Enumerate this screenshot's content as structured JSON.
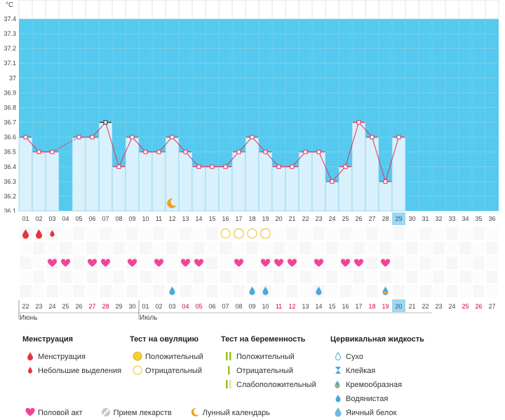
{
  "unit": "°C",
  "colors": {
    "sky": "#56c9ee",
    "bar": "#d8f1fc",
    "bar_edge": "#7cc9e8",
    "line": "#e0335e",
    "heart": "#f0449b",
    "drop_red": "#e8333c",
    "drop_blue": "#4aa8dd",
    "circle": "#f0c020",
    "moon": "#f0a020",
    "today": "#9dd7f0"
  },
  "chart_data": {
    "type": "line",
    "ylim": [
      36.1,
      37.4
    ],
    "yticks": [
      "36.1",
      "36.2",
      "36.3",
      "36.4",
      "36.5",
      "36.6",
      "36.7",
      "36.8",
      "36.9",
      "37",
      "37.1",
      "37.2",
      "37.3",
      "37.4"
    ],
    "cycle_days": [
      "01",
      "02",
      "03",
      "04",
      "05",
      "06",
      "07",
      "08",
      "09",
      "10",
      "11",
      "12",
      "13",
      "14",
      "15",
      "16",
      "17",
      "18",
      "19",
      "20",
      "21",
      "22",
      "23",
      "24",
      "25",
      "26",
      "27",
      "28",
      "29",
      "30",
      "31",
      "32",
      "33",
      "34",
      "35",
      "36"
    ],
    "temperatures": [
      36.6,
      36.5,
      36.5,
      null,
      36.6,
      36.6,
      36.7,
      36.4,
      36.6,
      36.5,
      36.5,
      36.6,
      36.5,
      36.4,
      36.4,
      36.4,
      36.5,
      36.6,
      36.5,
      36.4,
      36.4,
      36.5,
      36.5,
      36.3,
      36.4,
      36.7,
      36.6,
      36.3,
      36.6
    ],
    "today_index": 28,
    "dates": [
      "22",
      "23",
      "24",
      "25",
      "26",
      "27",
      "28",
      "29",
      "30",
      "01",
      "02",
      "03",
      "04",
      "05",
      "06",
      "07",
      "08",
      "09",
      "10",
      "11",
      "12",
      "13",
      "14",
      "15",
      "16",
      "17",
      "18",
      "19",
      "20",
      "21",
      "22",
      "23",
      "24",
      "25",
      "26",
      "27"
    ],
    "red_dates": [
      5,
      6,
      12,
      13,
      19,
      20,
      26,
      27,
      33,
      34
    ],
    "months": [
      {
        "label": "Июнь",
        "index": 0
      },
      {
        "label": "Июль",
        "index": 9
      }
    ],
    "menstruation_big": [
      0,
      1
    ],
    "menstruation_small": [
      2
    ],
    "ovulation_negative": [
      15,
      16,
      17,
      18
    ],
    "hearts": [
      2,
      3,
      5,
      6,
      8,
      10,
      12,
      13,
      16,
      18,
      19,
      20,
      22,
      24,
      25,
      27
    ],
    "fluid_watery": [
      11,
      17,
      18,
      22
    ],
    "fluid_creamy": [
      27
    ],
    "moon_day": 11
  },
  "legend": {
    "menstruation": {
      "title": "Менструация",
      "items": [
        "Менструация",
        "Небольшие выделения"
      ]
    },
    "ovulation": {
      "title": "Тест на овуляцию",
      "items": [
        "Положительный",
        "Отрицательный"
      ]
    },
    "pregnancy": {
      "title": "Тест на беременность",
      "items": [
        "Положительный",
        "Отрицательный",
        "Слабоположительный"
      ]
    },
    "fluid": {
      "title": "Цервикальная жидкость",
      "items": [
        "Сухо",
        "Клейкая",
        "Кремообразная",
        "Водянистая",
        "Яичный белок"
      ]
    },
    "bottom": [
      "Половой акт",
      "Прием лекарств",
      "Лунный календарь"
    ]
  }
}
